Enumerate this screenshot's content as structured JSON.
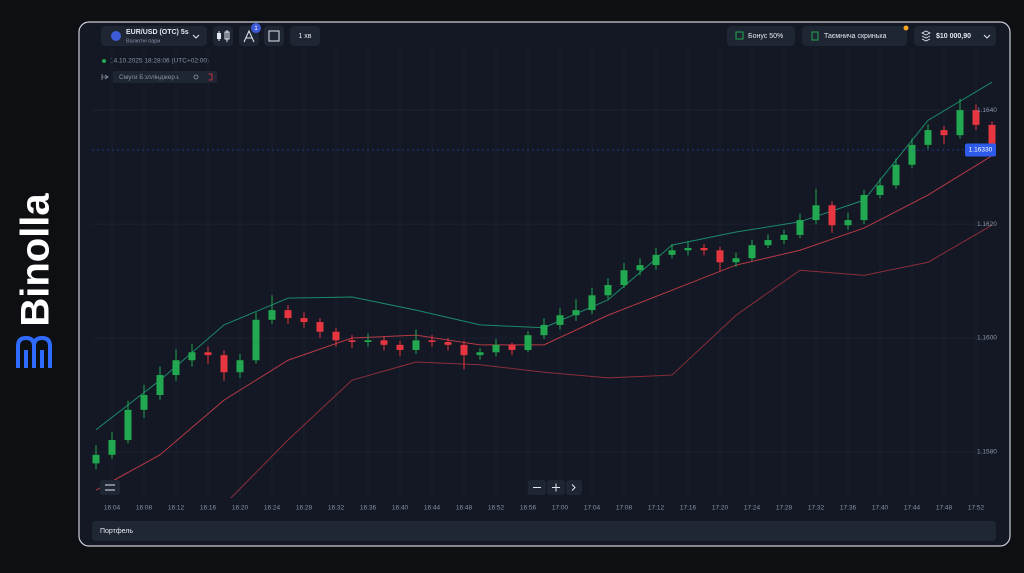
{
  "brand": {
    "name": "Binolla"
  },
  "toolbar": {
    "pair": "EUR/USD (OTC) 5s",
    "pair_group": "Валютні пари",
    "badge": 1,
    "timeframe": "1 хв",
    "bonus": "Бонус 50%",
    "chest": "Таємнича скринька",
    "balance": "$10 000,90"
  },
  "chart_info": {
    "timestamp": "14.10.2025 18:28:06 (UTC+02:00)",
    "indicator": "Смуги Боллінджера"
  },
  "footer": {
    "portfolio": "Портфель"
  },
  "chart_data": {
    "type": "candlestick",
    "grid": true,
    "up_color": "#22a84f",
    "down_color": "#e6363f",
    "x": [
      "16:02",
      "16:04",
      "16:06",
      "16:08",
      "16:10",
      "16:12",
      "16:14",
      "16:16",
      "16:18",
      "16:20",
      "16:22",
      "16:24",
      "16:26",
      "16:28",
      "16:30",
      "16:32",
      "16:34",
      "16:36",
      "16:38",
      "16:40",
      "16:42",
      "16:44",
      "16:46",
      "16:48",
      "16:50",
      "16:52",
      "16:54",
      "16:56",
      "16:58",
      "17:00",
      "17:02",
      "17:04",
      "17:06",
      "17:08",
      "17:10",
      "17:12",
      "17:14",
      "17:16",
      "17:18",
      "17:20",
      "17:22",
      "17:24",
      "17:26",
      "17:28",
      "17:30",
      "17:32",
      "17:34",
      "17:36",
      "17:38",
      "17:40",
      "17:42",
      "17:44",
      "17:46",
      "17:48",
      "17:50",
      "17:52",
      "17:54"
    ],
    "open": [
      1.1578,
      1.15795,
      1.15821,
      1.15874,
      1.159,
      1.15935,
      1.15961,
      1.15975,
      1.1597,
      1.1594,
      1.15961,
      1.16032,
      1.16049,
      1.16035,
      1.16028,
      1.16011,
      1.15996,
      1.15993,
      1.15996,
      1.15988,
      1.15979,
      1.15996,
      1.15993,
      1.15988,
      1.1597,
      1.15975,
      1.15988,
      1.15979,
      1.16005,
      1.16023,
      1.1604,
      1.16049,
      1.16075,
      1.16093,
      1.16119,
      1.16128,
      1.16146,
      1.16154,
      1.16158,
      1.16154,
      1.16133,
      1.1614,
      1.16163,
      1.16172,
      1.16181,
      1.16207,
      1.16233,
      1.16198,
      1.16207,
      1.16251,
      1.16268,
      1.16304,
      1.16339,
      1.16365,
      1.16356,
      1.164,
      1.16374
    ],
    "high": [
      1.15812,
      1.15835,
      1.1589,
      1.15918,
      1.1595,
      1.1598,
      1.1599,
      1.15985,
      1.15978,
      1.15972,
      1.16045,
      1.16075,
      1.16058,
      1.16045,
      1.16035,
      1.16018,
      1.16005,
      1.16008,
      1.16002,
      1.15995,
      1.16015,
      1.16005,
      1.16,
      1.15995,
      1.15982,
      1.15998,
      1.15992,
      1.16012,
      1.16035,
      1.16052,
      1.16068,
      1.16088,
      1.16105,
      1.16132,
      1.1614,
      1.16158,
      1.16165,
      1.1617,
      1.16165,
      1.1616,
      1.1615,
      1.16172,
      1.16182,
      1.1619,
      1.16218,
      1.16262,
      1.1624,
      1.1622,
      1.1626,
      1.1628,
      1.16315,
      1.1635,
      1.16375,
      1.16372,
      1.1642,
      1.1641,
      1.1638
    ],
    "low": [
      1.1577,
      1.15788,
      1.15815,
      1.1586,
      1.15892,
      1.15925,
      1.1595,
      1.15955,
      1.15925,
      1.1593,
      1.15955,
      1.16025,
      1.16025,
      1.16018,
      1.16,
      1.15985,
      1.15982,
      1.15985,
      1.15978,
      1.15968,
      1.15972,
      1.15985,
      1.15978,
      1.15945,
      1.15962,
      1.15968,
      1.1597,
      1.15975,
      1.15998,
      1.16015,
      1.1603,
      1.16042,
      1.16068,
      1.16088,
      1.1611,
      1.1612,
      1.1614,
      1.16145,
      1.16145,
      1.16118,
      1.16125,
      1.16135,
      1.16158,
      1.16165,
      1.16175,
      1.162,
      1.16185,
      1.1619,
      1.162,
      1.16245,
      1.16262,
      1.16298,
      1.16332,
      1.1634,
      1.1635,
      1.16365,
      1.16325
    ],
    "close": [
      1.15795,
      1.15821,
      1.15874,
      1.159,
      1.15935,
      1.15961,
      1.15975,
      1.1597,
      1.1594,
      1.15961,
      1.16032,
      1.16049,
      1.16035,
      1.16028,
      1.16011,
      1.15996,
      1.15993,
      1.15996,
      1.15988,
      1.15979,
      1.15996,
      1.15993,
      1.15988,
      1.1597,
      1.15975,
      1.15988,
      1.15979,
      1.16005,
      1.16023,
      1.1604,
      1.16049,
      1.16075,
      1.16093,
      1.16119,
      1.16128,
      1.16146,
      1.16154,
      1.16158,
      1.16154,
      1.16133,
      1.1614,
      1.16163,
      1.16172,
      1.16181,
      1.16207,
      1.16233,
      1.16198,
      1.16207,
      1.16251,
      1.16268,
      1.16304,
      1.16339,
      1.16365,
      1.16356,
      1.164,
      1.16374,
      1.1633
    ],
    "bands": {
      "x": [
        "16:02",
        "16:10",
        "16:18",
        "16:26",
        "16:34",
        "16:42",
        "16:50",
        "16:58",
        "17:06",
        "17:14",
        "17:22",
        "17:30",
        "17:38",
        "17:46",
        "17:54"
      ],
      "upper": {
        "color": "#1d8a6a",
        "values": [
          1.15839,
          1.15926,
          1.16023,
          1.1607,
          1.16072,
          1.16049,
          1.16023,
          1.16018,
          1.16067,
          1.16163,
          1.16186,
          1.16204,
          1.16242,
          1.16382,
          1.16449
        ]
      },
      "middle": {
        "color": "#b73a45",
        "values": [
          1.15733,
          1.15795,
          1.15891,
          1.15961,
          1.16,
          1.16005,
          1.15988,
          1.15988,
          1.1604,
          1.16084,
          1.16128,
          1.16154,
          1.16193,
          1.16251,
          1.1632
        ]
      },
      "lower": {
        "color": "#8c2e3a",
        "values": [
          null,
          null,
          1.15707,
          1.15821,
          1.15926,
          1.15958,
          1.15953,
          1.1594,
          1.1593,
          1.15935,
          1.1604,
          1.16119,
          1.1611,
          1.16133,
          1.16198
        ]
      }
    },
    "current_price": {
      "value": 1.1633,
      "label": "1.16330"
    },
    "xlim": [
      "16:01",
      "17:55"
    ],
    "ylim": [
      1.15721,
      1.16509
    ],
    "xticks": [
      "16:04",
      "16:08",
      "16:12",
      "16:16",
      "16:20",
      "16:24",
      "16:28",
      "16:32",
      "16:36",
      "16:40",
      "16:44",
      "16:48",
      "16:52",
      "16:56",
      "17:00",
      "17:04",
      "17:08",
      "17:12",
      "17:16",
      "17:20",
      "17:24",
      "17:28",
      "17:32",
      "17:36",
      "17:40",
      "17:44",
      "17:48",
      "17:52"
    ],
    "yticks": [
      {
        "value": 1.158,
        "label": "1.1580"
      },
      {
        "value": 1.16,
        "label": "1.1600"
      },
      {
        "value": 1.162,
        "label": "1.1620"
      },
      {
        "value": 1.164,
        "label": "1.1640"
      }
    ]
  }
}
